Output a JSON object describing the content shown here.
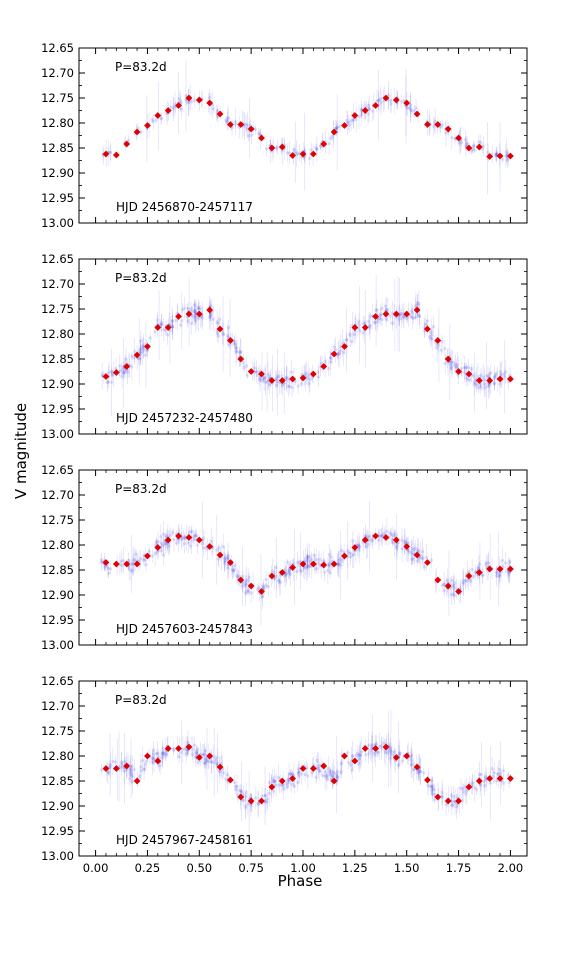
{
  "figure": {
    "ylabel": "V magnitude",
    "xlabel": "Phase",
    "colors": {
      "scatter": "#4f4fe6",
      "binned": "#e00000",
      "axes": "#000000"
    }
  },
  "chart_data": [
    {
      "type": "scatter",
      "xlim": [
        -0.08,
        2.08
      ],
      "ylim": [
        12.65,
        13.0
      ],
      "y_inverted": true,
      "x_ticks": [
        "0.00",
        "0.25",
        "0.50",
        "0.75",
        "1.00",
        "1.25",
        "1.50",
        "1.75",
        "2.00"
      ],
      "x_tick_values": [
        0,
        0.25,
        0.5,
        0.75,
        1.0,
        1.25,
        1.5,
        1.75,
        2.0
      ],
      "y_ticks": [
        "12.65",
        "12.70",
        "12.75",
        "12.80",
        "12.85",
        "12.90",
        "12.95",
        "13.00"
      ],
      "y_tick_values": [
        12.65,
        12.7,
        12.75,
        12.8,
        12.85,
        12.9,
        12.95,
        13.0
      ],
      "period_label": "P=83.2d",
      "hjd_label": "HJD 2456870-2457117",
      "series": [
        {
          "x": [
            0.05,
            0.1,
            0.15,
            0.2,
            0.25,
            0.3,
            0.35,
            0.4,
            0.45,
            0.5,
            0.55,
            0.6,
            0.65,
            0.7,
            0.75,
            0.8,
            0.85,
            0.9,
            0.95,
            1.0,
            1.05,
            1.1,
            1.15,
            1.2,
            1.25,
            1.3,
            1.35,
            1.4,
            1.45,
            1.5,
            1.55,
            1.6,
            1.65,
            1.7,
            1.75,
            1.8,
            1.85,
            1.9,
            1.95,
            2.0
          ],
          "y": [
            12.862,
            12.864,
            12.842,
            12.818,
            12.805,
            12.785,
            12.775,
            12.765,
            12.75,
            12.754,
            12.76,
            12.782,
            12.803,
            12.803,
            12.812,
            12.83,
            12.85,
            12.848,
            12.865,
            12.862,
            12.862,
            12.842,
            12.818,
            12.805,
            12.785,
            12.775,
            12.765,
            12.75,
            12.754,
            12.76,
            12.782,
            12.803,
            12.803,
            12.812,
            12.83,
            12.85,
            12.848,
            12.867,
            12.866,
            12.866
          ]
        }
      ]
    },
    {
      "type": "scatter",
      "xlim": [
        -0.08,
        2.08
      ],
      "ylim": [
        12.65,
        13.0
      ],
      "y_inverted": true,
      "x_ticks": [
        "0.00",
        "0.25",
        "0.50",
        "0.75",
        "1.00",
        "1.25",
        "1.50",
        "1.75",
        "2.00"
      ],
      "x_tick_values": [
        0,
        0.25,
        0.5,
        0.75,
        1.0,
        1.25,
        1.5,
        1.75,
        2.0
      ],
      "y_ticks": [
        "12.65",
        "12.70",
        "12.75",
        "12.80",
        "12.85",
        "12.90",
        "12.95",
        "13.00"
      ],
      "y_tick_values": [
        12.65,
        12.7,
        12.75,
        12.8,
        12.85,
        12.9,
        12.95,
        13.0
      ],
      "period_label": "P=83.2d",
      "hjd_label": "HJD 2457232-2457480",
      "series": [
        {
          "x": [
            0.05,
            0.1,
            0.15,
            0.2,
            0.25,
            0.3,
            0.35,
            0.4,
            0.45,
            0.5,
            0.55,
            0.6,
            0.65,
            0.7,
            0.75,
            0.8,
            0.85,
            0.9,
            0.95,
            1.0,
            1.05,
            1.1,
            1.15,
            1.2,
            1.25,
            1.3,
            1.35,
            1.4,
            1.45,
            1.5,
            1.55,
            1.6,
            1.65,
            1.7,
            1.75,
            1.8,
            1.85,
            1.9,
            1.95,
            2.0
          ],
          "y": [
            12.885,
            12.877,
            12.865,
            12.842,
            12.825,
            12.787,
            12.787,
            12.765,
            12.76,
            12.76,
            12.752,
            12.79,
            12.813,
            12.85,
            12.875,
            12.88,
            12.893,
            12.893,
            12.89,
            12.888,
            12.88,
            12.865,
            12.84,
            12.825,
            12.787,
            12.787,
            12.765,
            12.76,
            12.76,
            12.76,
            12.752,
            12.79,
            12.813,
            12.85,
            12.875,
            12.88,
            12.893,
            12.893,
            12.89,
            12.89
          ]
        }
      ]
    },
    {
      "type": "scatter",
      "xlim": [
        -0.08,
        2.08
      ],
      "ylim": [
        12.65,
        13.0
      ],
      "y_inverted": true,
      "x_ticks": [
        "0.00",
        "0.25",
        "0.50",
        "0.75",
        "1.00",
        "1.25",
        "1.50",
        "1.75",
        "2.00"
      ],
      "x_tick_values": [
        0,
        0.25,
        0.5,
        0.75,
        1.0,
        1.25,
        1.5,
        1.75,
        2.0
      ],
      "y_ticks": [
        "12.65",
        "12.70",
        "12.75",
        "12.80",
        "12.85",
        "12.90",
        "12.95",
        "13.00"
      ],
      "y_tick_values": [
        12.65,
        12.7,
        12.75,
        12.8,
        12.85,
        12.9,
        12.95,
        13.0
      ],
      "period_label": "P=83.2d",
      "hjd_label": "HJD 2457603-2457843",
      "series": [
        {
          "x": [
            0.05,
            0.1,
            0.15,
            0.2,
            0.25,
            0.3,
            0.35,
            0.4,
            0.45,
            0.5,
            0.55,
            0.6,
            0.65,
            0.7,
            0.75,
            0.8,
            0.85,
            0.9,
            0.95,
            1.0,
            1.05,
            1.1,
            1.15,
            1.2,
            1.25,
            1.3,
            1.35,
            1.4,
            1.45,
            1.5,
            1.55,
            1.6,
            1.65,
            1.7,
            1.75,
            1.8,
            1.85,
            1.9,
            1.95,
            2.0
          ],
          "y": [
            12.835,
            12.838,
            12.838,
            12.838,
            12.822,
            12.805,
            12.79,
            12.782,
            12.785,
            12.79,
            12.803,
            12.82,
            12.835,
            12.87,
            12.882,
            12.893,
            12.862,
            12.855,
            12.845,
            12.838,
            12.838,
            12.84,
            12.838,
            12.822,
            12.805,
            12.79,
            12.782,
            12.785,
            12.79,
            12.803,
            12.82,
            12.835,
            12.87,
            12.882,
            12.893,
            12.862,
            12.855,
            12.848,
            12.848,
            12.848
          ]
        }
      ]
    },
    {
      "type": "scatter",
      "xlim": [
        -0.08,
        2.08
      ],
      "ylim": [
        12.65,
        13.0
      ],
      "y_inverted": true,
      "x_ticks": [
        "0.00",
        "0.25",
        "0.50",
        "0.75",
        "1.00",
        "1.25",
        "1.50",
        "1.75",
        "2.00"
      ],
      "x_tick_values": [
        0,
        0.25,
        0.5,
        0.75,
        1.0,
        1.25,
        1.5,
        1.75,
        2.0
      ],
      "y_ticks": [
        "12.65",
        "12.70",
        "12.75",
        "12.80",
        "12.85",
        "12.90",
        "12.95",
        "13.00"
      ],
      "y_tick_values": [
        12.65,
        12.7,
        12.75,
        12.8,
        12.85,
        12.9,
        12.95,
        13.0
      ],
      "period_label": "P=83.2d",
      "hjd_label": "HJD 2457967-2458161",
      "series": [
        {
          "x": [
            0.05,
            0.1,
            0.15,
            0.2,
            0.25,
            0.3,
            0.35,
            0.4,
            0.45,
            0.5,
            0.55,
            0.6,
            0.65,
            0.7,
            0.75,
            0.8,
            0.85,
            0.9,
            0.95,
            1.0,
            1.05,
            1.1,
            1.15,
            1.2,
            1.25,
            1.3,
            1.35,
            1.4,
            1.45,
            1.5,
            1.55,
            1.6,
            1.65,
            1.7,
            1.75,
            1.8,
            1.85,
            1.9,
            1.95,
            2.0
          ],
          "y": [
            12.825,
            12.825,
            12.82,
            12.85,
            12.8,
            12.81,
            12.785,
            12.785,
            12.782,
            12.803,
            12.8,
            12.822,
            12.848,
            12.882,
            12.89,
            12.89,
            12.862,
            12.85,
            12.845,
            12.825,
            12.825,
            12.82,
            12.85,
            12.8,
            12.81,
            12.785,
            12.785,
            12.782,
            12.803,
            12.8,
            12.822,
            12.848,
            12.882,
            12.89,
            12.89,
            12.862,
            12.85,
            12.845,
            12.845,
            12.845
          ]
        }
      ]
    }
  ]
}
